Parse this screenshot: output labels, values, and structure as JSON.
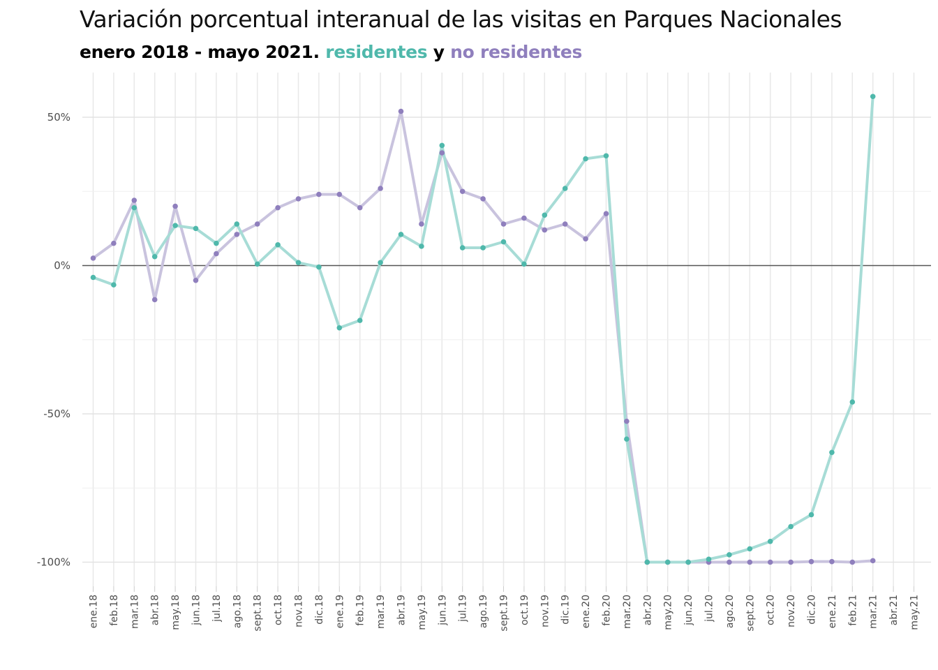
{
  "title": "Variación porcentual interanual de las visitas en Parques Nacionales",
  "subtitle": {
    "prefix": "enero 2018 - mayo 2021. ",
    "series1": "residentes",
    "connector": " y ",
    "series2": "no residentes"
  },
  "colors": {
    "residentes_line": "#a7dcd6",
    "residentes_point": "#4fb8ab",
    "no_residentes_line": "#c9c3de",
    "no_residentes_point": "#8f7fbd",
    "zero_line": "#555555",
    "grid": "#e8e8e8"
  },
  "chart_data": {
    "type": "line",
    "title": "Variación porcentual interanual de las visitas en Parques Nacionales",
    "xlabel": "",
    "ylabel": "",
    "ylim": [
      -108,
      63
    ],
    "y_ticks": [
      50,
      0,
      -50,
      -100
    ],
    "y_tick_labels": [
      "50%",
      "0%",
      "-50%",
      "-100%"
    ],
    "grid": true,
    "categories": [
      "ene.18",
      "feb.18",
      "mar.18",
      "abr.18",
      "may.18",
      "jun.18",
      "jul.18",
      "ago.18",
      "sept.18",
      "oct.18",
      "nov.18",
      "dic.18",
      "ene.19",
      "feb.19",
      "mar.19",
      "abr.19",
      "may.19",
      "jun.19",
      "jul.19",
      "ago.19",
      "sept.19",
      "oct.19",
      "nov.19",
      "dic.19",
      "ene.20",
      "feb.20",
      "mar.20",
      "abr.20",
      "may.20",
      "jun.20",
      "jul.20",
      "ago.20",
      "sept.20",
      "oct.20",
      "nov.20",
      "dic.20",
      "ene.21",
      "feb.21",
      "mar.21",
      "abr.21",
      "may.21"
    ],
    "series": [
      {
        "name": "no residentes",
        "values": [
          2.5,
          7.5,
          22,
          -11.5,
          20,
          -5,
          4,
          10.5,
          14,
          19.5,
          22.5,
          24,
          24,
          19.5,
          26,
          52,
          14,
          38,
          25,
          22.5,
          14,
          16,
          12,
          14,
          9,
          17.5,
          -52.5,
          -100,
          -100,
          -100,
          -100,
          -100,
          -100,
          -100,
          -100,
          -99.8,
          -99.8,
          -100,
          -99.5,
          null,
          null
        ]
      },
      {
        "name": "residentes",
        "values": [
          -4,
          -6.5,
          19.5,
          3,
          13.5,
          12.5,
          7.5,
          14,
          0.5,
          7,
          1,
          -0.5,
          -21,
          -18.5,
          1,
          10.5,
          6.5,
          40.5,
          6,
          6,
          8,
          0.5,
          17,
          26,
          36,
          37,
          -58.5,
          -100,
          -100,
          -100,
          -99,
          -97.5,
          -95.5,
          -93,
          -88,
          -84,
          -63,
          -46,
          57,
          null,
          null
        ]
      }
    ]
  }
}
